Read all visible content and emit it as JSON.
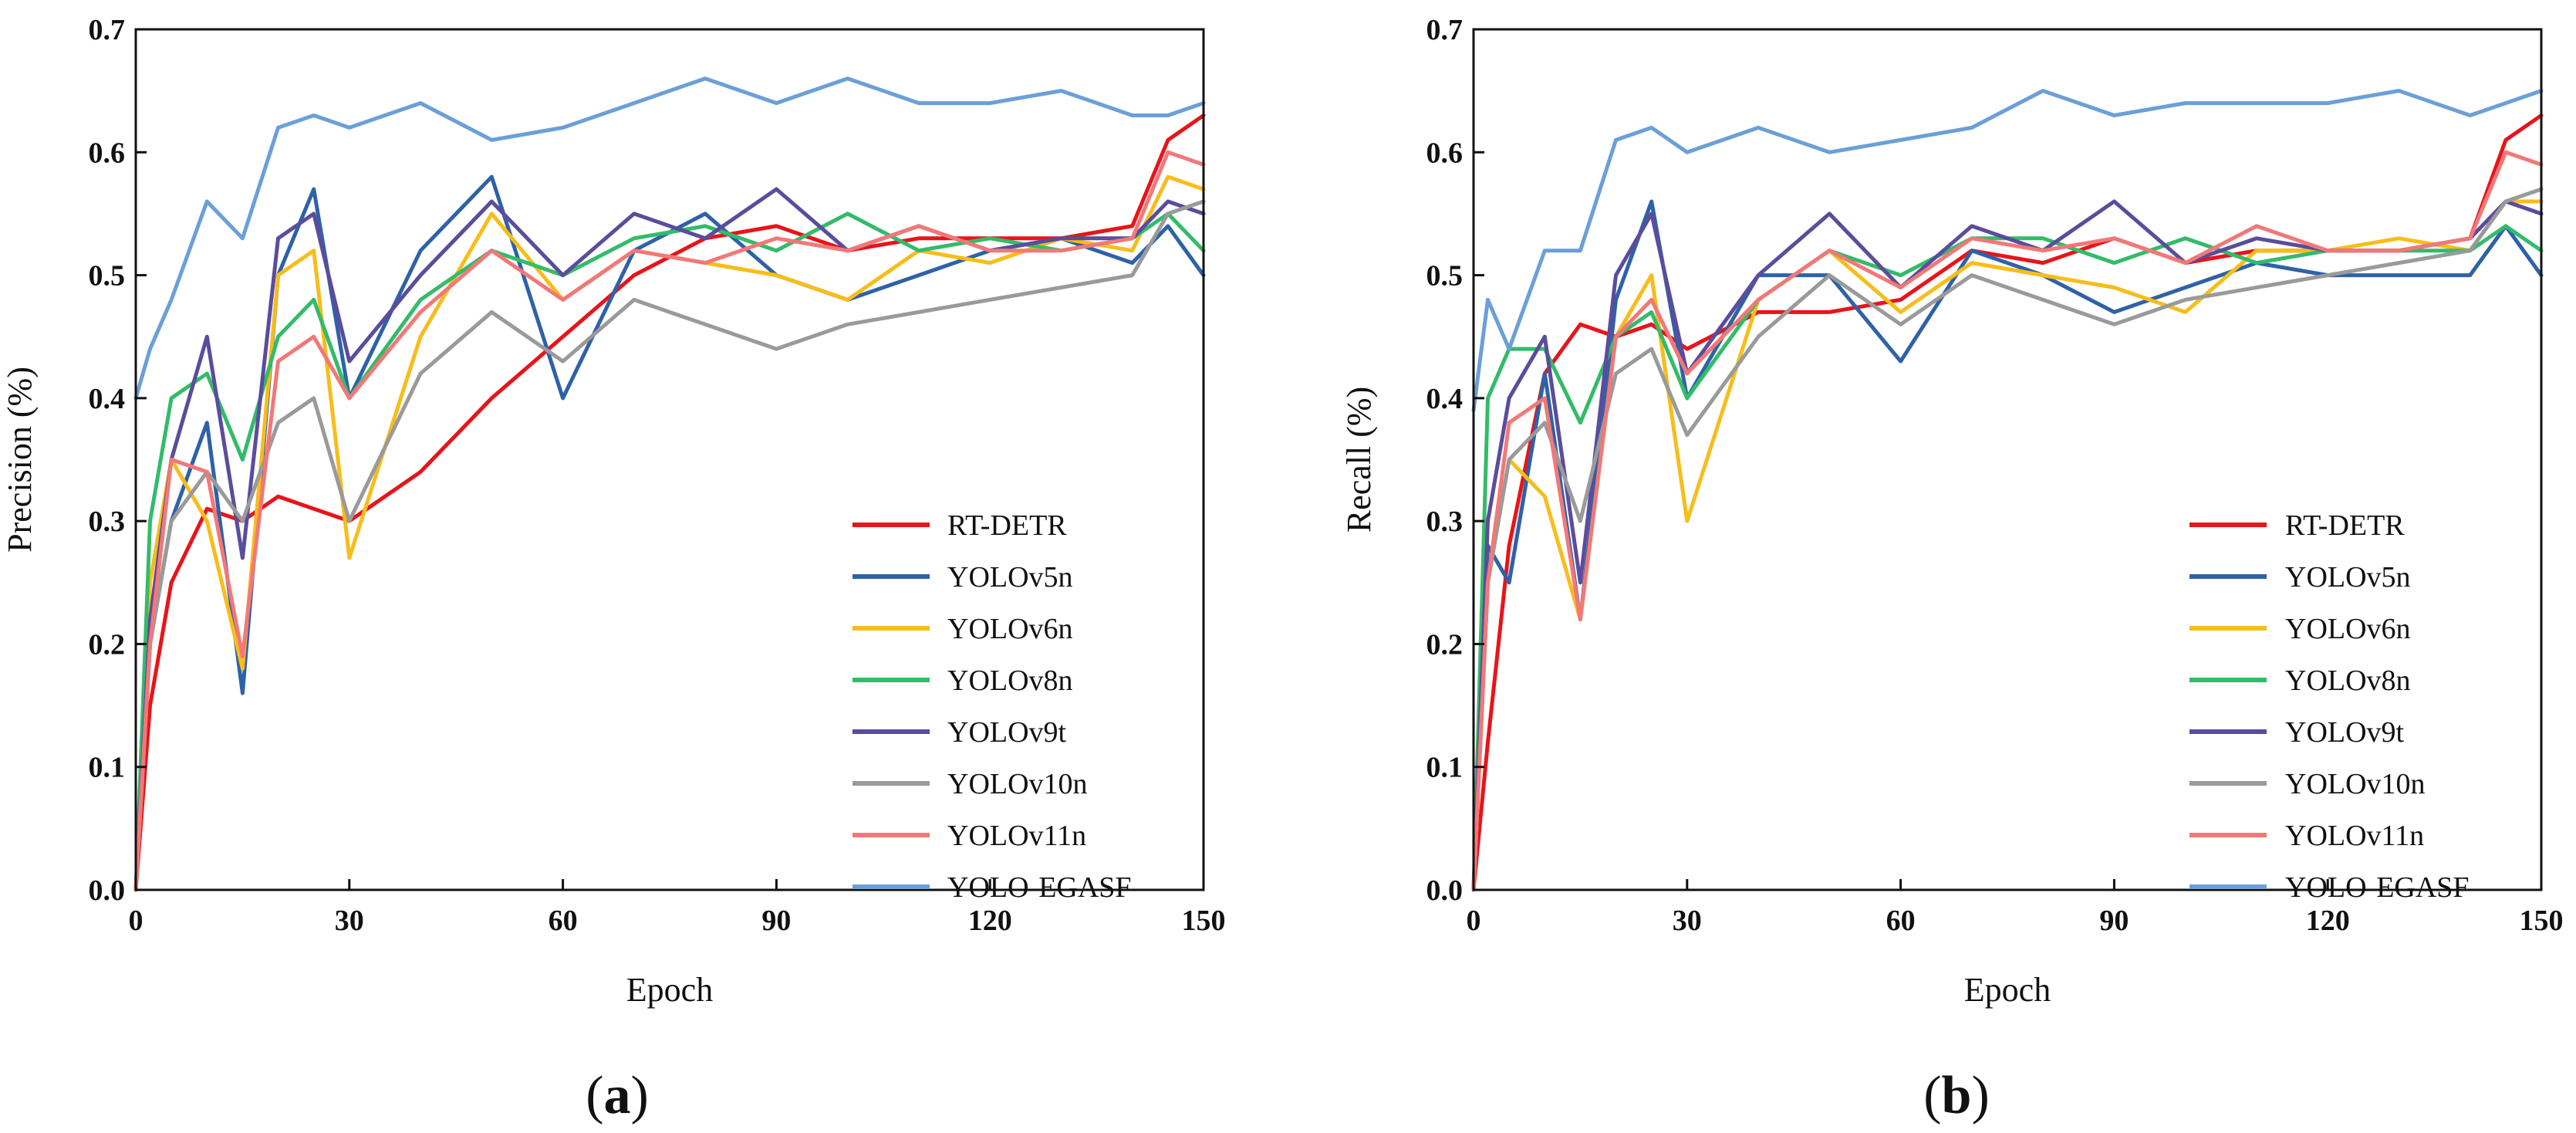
{
  "chart_data": [
    {
      "type": "line",
      "panel_label": "a",
      "xlabel": "Epoch",
      "ylabel": "Precision (%)",
      "xlim": [
        0,
        150
      ],
      "ylim": [
        0.0,
        0.7
      ],
      "xticks": [
        "0",
        "30",
        "60",
        "90",
        "120",
        "150"
      ],
      "yticks": [
        "0.0",
        "0.1",
        "0.2",
        "0.3",
        "0.4",
        "0.5",
        "0.6",
        "0.7"
      ],
      "legend_position": "bottom-right",
      "x": [
        0,
        2,
        5,
        10,
        15,
        20,
        25,
        30,
        40,
        50,
        60,
        70,
        80,
        90,
        100,
        110,
        120,
        130,
        140,
        145,
        150
      ],
      "series": [
        {
          "name": "RT-DETR",
          "color": "#e8141a",
          "values": [
            0.0,
            0.15,
            0.25,
            0.31,
            0.3,
            0.32,
            0.31,
            0.3,
            0.34,
            0.4,
            0.45,
            0.5,
            0.53,
            0.54,
            0.52,
            0.53,
            0.53,
            0.53,
            0.54,
            0.61,
            0.63
          ]
        },
        {
          "name": "YOLOv5n",
          "color": "#2e62a8",
          "values": [
            0.0,
            0.2,
            0.3,
            0.38,
            0.16,
            0.5,
            0.57,
            0.4,
            0.52,
            0.58,
            0.4,
            0.52,
            0.55,
            0.5,
            0.48,
            0.5,
            0.52,
            0.53,
            0.51,
            0.54,
            0.5
          ]
        },
        {
          "name": "YOLOv6n",
          "color": "#f7bd1a",
          "values": [
            0.0,
            0.25,
            0.35,
            0.3,
            0.18,
            0.5,
            0.52,
            0.27,
            0.45,
            0.55,
            0.48,
            0.52,
            0.51,
            0.5,
            0.48,
            0.52,
            0.51,
            0.53,
            0.52,
            0.58,
            0.57
          ]
        },
        {
          "name": "YOLOv8n",
          "color": "#33bb6a",
          "values": [
            0.0,
            0.3,
            0.4,
            0.42,
            0.35,
            0.45,
            0.48,
            0.4,
            0.48,
            0.52,
            0.5,
            0.53,
            0.54,
            0.52,
            0.55,
            0.52,
            0.53,
            0.52,
            0.53,
            0.55,
            0.52
          ]
        },
        {
          "name": "YOLOv9t",
          "color": "#5b4c9c",
          "values": [
            0.0,
            0.22,
            0.35,
            0.45,
            0.27,
            0.53,
            0.55,
            0.43,
            0.5,
            0.56,
            0.5,
            0.55,
            0.53,
            0.57,
            0.52,
            0.54,
            0.52,
            0.53,
            0.53,
            0.56,
            0.55
          ]
        },
        {
          "name": "YOLOv10n",
          "color": "#9a9a9a",
          "values": [
            0.0,
            0.2,
            0.3,
            0.34,
            0.3,
            0.38,
            0.4,
            0.3,
            0.42,
            0.47,
            0.43,
            0.48,
            0.46,
            0.44,
            0.46,
            0.47,
            0.48,
            0.49,
            0.5,
            0.55,
            0.56
          ]
        },
        {
          "name": "YOLOv11n",
          "color": "#f27878",
          "values": [
            0.0,
            0.2,
            0.35,
            0.34,
            0.19,
            0.43,
            0.45,
            0.4,
            0.47,
            0.52,
            0.48,
            0.52,
            0.51,
            0.53,
            0.52,
            0.54,
            0.52,
            0.52,
            0.53,
            0.6,
            0.59
          ]
        },
        {
          "name": "YOLO-EGASF",
          "color": "#6b9fd8",
          "values": [
            0.4,
            0.44,
            0.48,
            0.56,
            0.53,
            0.62,
            0.63,
            0.62,
            0.64,
            0.61,
            0.62,
            0.64,
            0.66,
            0.64,
            0.66,
            0.64,
            0.64,
            0.65,
            0.63,
            0.63,
            0.64
          ]
        }
      ]
    },
    {
      "type": "line",
      "panel_label": "b",
      "xlabel": "Epoch",
      "ylabel": "Recall (%)",
      "xlim": [
        0,
        150
      ],
      "ylim": [
        0.0,
        0.7
      ],
      "xticks": [
        "0",
        "30",
        "60",
        "90",
        "120",
        "150"
      ],
      "yticks": [
        "0.0",
        "0.1",
        "0.2",
        "0.3",
        "0.4",
        "0.5",
        "0.6",
        "0.7"
      ],
      "legend_position": "bottom-right",
      "x": [
        0,
        2,
        5,
        10,
        15,
        20,
        25,
        30,
        40,
        50,
        60,
        70,
        80,
        90,
        100,
        110,
        120,
        130,
        140,
        145,
        150
      ],
      "series": [
        {
          "name": "RT-DETR",
          "color": "#e8141a",
          "values": [
            0.0,
            0.12,
            0.28,
            0.42,
            0.46,
            0.45,
            0.46,
            0.44,
            0.47,
            0.47,
            0.48,
            0.52,
            0.51,
            0.53,
            0.51,
            0.52,
            0.52,
            0.52,
            0.53,
            0.61,
            0.63
          ]
        },
        {
          "name": "YOLOv5n",
          "color": "#2e62a8",
          "values": [
            0.0,
            0.28,
            0.25,
            0.42,
            0.22,
            0.48,
            0.56,
            0.4,
            0.5,
            0.5,
            0.43,
            0.52,
            0.5,
            0.47,
            0.49,
            0.51,
            0.5,
            0.5,
            0.5,
            0.54,
            0.5
          ]
        },
        {
          "name": "YOLOv6n",
          "color": "#f7bd1a",
          "values": [
            0.0,
            0.25,
            0.35,
            0.32,
            0.22,
            0.45,
            0.5,
            0.3,
            0.48,
            0.52,
            0.47,
            0.51,
            0.5,
            0.49,
            0.47,
            0.52,
            0.52,
            0.53,
            0.52,
            0.56,
            0.56
          ]
        },
        {
          "name": "YOLOv8n",
          "color": "#33bb6a",
          "values": [
            0.0,
            0.4,
            0.44,
            0.44,
            0.38,
            0.45,
            0.47,
            0.4,
            0.48,
            0.52,
            0.5,
            0.53,
            0.53,
            0.51,
            0.53,
            0.51,
            0.52,
            0.52,
            0.52,
            0.54,
            0.52
          ]
        },
        {
          "name": "YOLOv9t",
          "color": "#5b4c9c",
          "values": [
            0.0,
            0.3,
            0.4,
            0.45,
            0.25,
            0.5,
            0.55,
            0.42,
            0.5,
            0.55,
            0.49,
            0.54,
            0.52,
            0.56,
            0.51,
            0.53,
            0.52,
            0.52,
            0.53,
            0.56,
            0.55
          ]
        },
        {
          "name": "YOLOv10n",
          "color": "#9a9a9a",
          "values": [
            0.0,
            0.25,
            0.35,
            0.38,
            0.3,
            0.42,
            0.44,
            0.37,
            0.45,
            0.5,
            0.46,
            0.5,
            0.48,
            0.46,
            0.48,
            0.49,
            0.5,
            0.51,
            0.52,
            0.56,
            0.57
          ]
        },
        {
          "name": "YOLOv11n",
          "color": "#f27878",
          "values": [
            0.0,
            0.25,
            0.38,
            0.4,
            0.22,
            0.45,
            0.48,
            0.42,
            0.48,
            0.52,
            0.49,
            0.53,
            0.52,
            0.53,
            0.51,
            0.54,
            0.52,
            0.52,
            0.53,
            0.6,
            0.59
          ]
        },
        {
          "name": "YOLO-EGASF",
          "color": "#6b9fd8",
          "values": [
            0.39,
            0.48,
            0.44,
            0.52,
            0.52,
            0.61,
            0.62,
            0.6,
            0.62,
            0.6,
            0.61,
            0.62,
            0.65,
            0.63,
            0.64,
            0.64,
            0.64,
            0.65,
            0.63,
            0.64,
            0.65
          ]
        }
      ]
    }
  ]
}
